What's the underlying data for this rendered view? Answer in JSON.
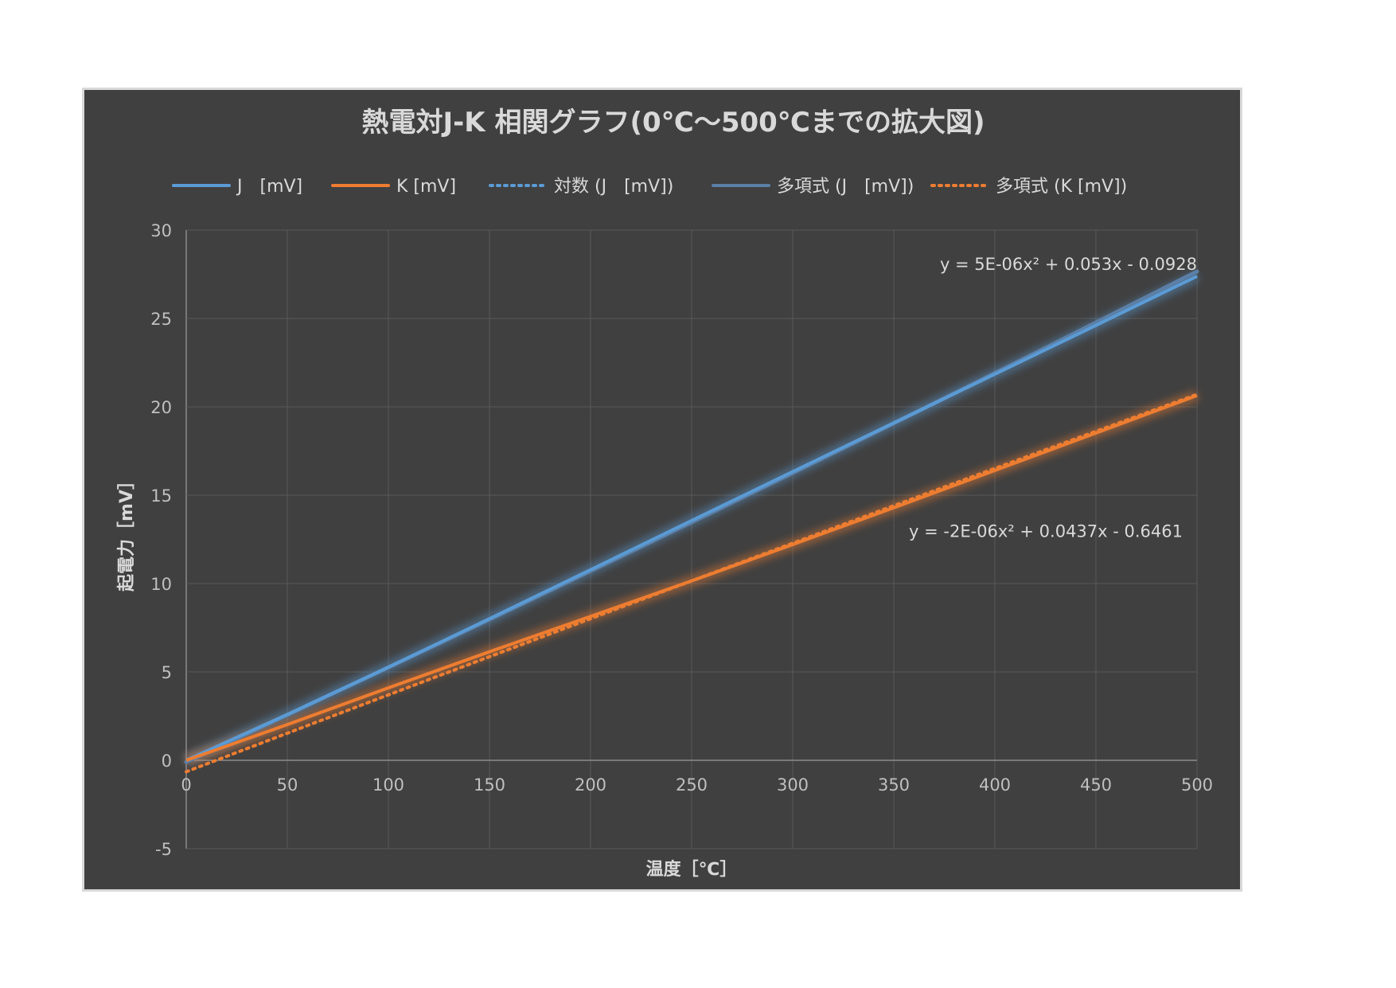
{
  "chart_data": {
    "type": "line",
    "title": "熱電対J-K  相関グラフ(0℃～500℃までの拡大図)",
    "xlabel": "温度［℃］",
    "ylabel": "起電力［mV］",
    "xlim": [
      0,
      500
    ],
    "ylim": [
      -5,
      30
    ],
    "x_ticks": [
      0,
      50,
      100,
      150,
      200,
      250,
      300,
      350,
      400,
      450,
      500
    ],
    "y_ticks": [
      -5,
      0,
      5,
      10,
      15,
      20,
      25,
      30
    ],
    "grid": true,
    "legend_position": "top",
    "x": [
      0,
      50,
      100,
      150,
      200,
      250,
      300,
      350,
      400,
      450,
      500
    ],
    "series": [
      {
        "name": "J　[mV]",
        "color": "#5b9bd5",
        "style": "solid",
        "values": [
          0,
          2.59,
          5.27,
          8.01,
          10.78,
          13.56,
          16.33,
          19.09,
          21.85,
          24.61,
          27.39
        ]
      },
      {
        "name": "K [mV]",
        "color": "#ed7d31",
        "style": "solid",
        "values": [
          0,
          2.02,
          4.1,
          6.14,
          8.14,
          10.15,
          12.21,
          14.29,
          16.4,
          18.52,
          20.64
        ]
      }
    ],
    "trendlines": [
      {
        "name": "対数 (J　[mV])",
        "color": "#5b9bd5",
        "style": "dotted",
        "type": "logarithmic"
      },
      {
        "name": "多項式 (J　[mV])",
        "color": "#5b7fa6",
        "style": "solid",
        "type": "polynomial",
        "coefficients": [
          5e-06,
          0.053,
          -0.0928
        ],
        "equation": "y = 5E-06x² + 0.053x - 0.0928"
      },
      {
        "name": "多項式 (K [mV])",
        "color": "#ed7d31",
        "style": "dotted",
        "type": "polynomial",
        "coefficients": [
          -2e-06,
          0.0437,
          -0.6461
        ],
        "equation": "y = -2E-06x² + 0.0437x - 0.6461"
      }
    ]
  }
}
